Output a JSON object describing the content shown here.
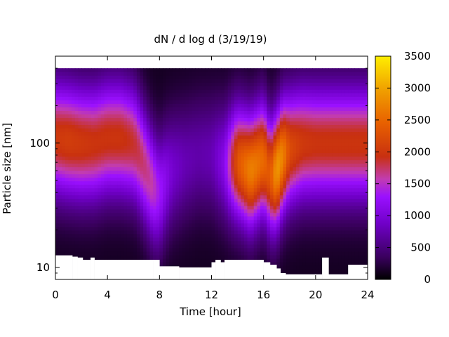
{
  "chart_data": {
    "type": "heatmap",
    "title": "dN / d log d (3/19/19)",
    "xlabel": "Time [hour]",
    "ylabel": "Particle size [nm]",
    "xlim": [
      0,
      24
    ],
    "ylim": [
      8.0,
      500
    ],
    "y_scale": "log",
    "x_ticks": [
      0,
      4,
      8,
      12,
      16,
      20,
      24
    ],
    "x_tick_labels": [
      "0",
      "4",
      "8",
      "12",
      "16",
      "20",
      "24"
    ],
    "y_ticks": [
      10,
      100
    ],
    "y_tick_labels": [
      "10",
      "100"
    ],
    "colorbar": {
      "range": [
        0,
        3500
      ],
      "ticks": [
        0,
        500,
        1000,
        1500,
        2000,
        2500,
        3000,
        3500
      ],
      "tick_labels": [
        "0",
        "500",
        "1000",
        "1500",
        "2000",
        "2500",
        "3000",
        "3500"
      ],
      "colormap": [
        "#000000",
        "#3a005e",
        "#7000c8",
        "#9a10ff",
        "#c23cb0",
        "#c83010",
        "#e86000",
        "#f0a000",
        "#ffee00"
      ]
    },
    "intensity_profile": {
      "hours": [
        0,
        1,
        2,
        3,
        4,
        5,
        6,
        7,
        7.5,
        8,
        9,
        10,
        11,
        12,
        13,
        14,
        15,
        16,
        16.5,
        17,
        17.5,
        18,
        19,
        20,
        21,
        22,
        23,
        24
      ],
      "peak_concentration": [
        1900,
        1950,
        1900,
        1850,
        1850,
        1850,
        1750,
        1550,
        1450,
        1200,
        800,
        650,
        600,
        650,
        1000,
        2200,
        2600,
        2400,
        2200,
        2800,
        2600,
        2100,
        1900,
        1850,
        1850,
        1850,
        1850,
        1850
      ],
      "peak_size_nm": [
        110,
        105,
        100,
        100,
        110,
        110,
        100,
        60,
        45,
        40,
        60,
        70,
        80,
        80,
        70,
        70,
        60,
        75,
        55,
        60,
        80,
        90,
        100,
        100,
        100,
        100,
        100,
        100
      ]
    },
    "lower_size_limit": {
      "hours": [
        0,
        1.3,
        1.7,
        2.1,
        2.7,
        3,
        7.5,
        8,
        9.5,
        11,
        12,
        12.3,
        12.7,
        13,
        16,
        16.5,
        17,
        17.3,
        17.7,
        18,
        20,
        20.5,
        21,
        22.5,
        24
      ],
      "size_nm": [
        12.5,
        12.2,
        12.0,
        11.5,
        12.0,
        11.5,
        11.5,
        10.2,
        10.0,
        10.0,
        11.0,
        11.5,
        11.0,
        11.5,
        11.0,
        10.5,
        9.8,
        9.0,
        8.8,
        8.8,
        8.8,
        12.0,
        8.8,
        10.5,
        10.5
      ]
    }
  }
}
